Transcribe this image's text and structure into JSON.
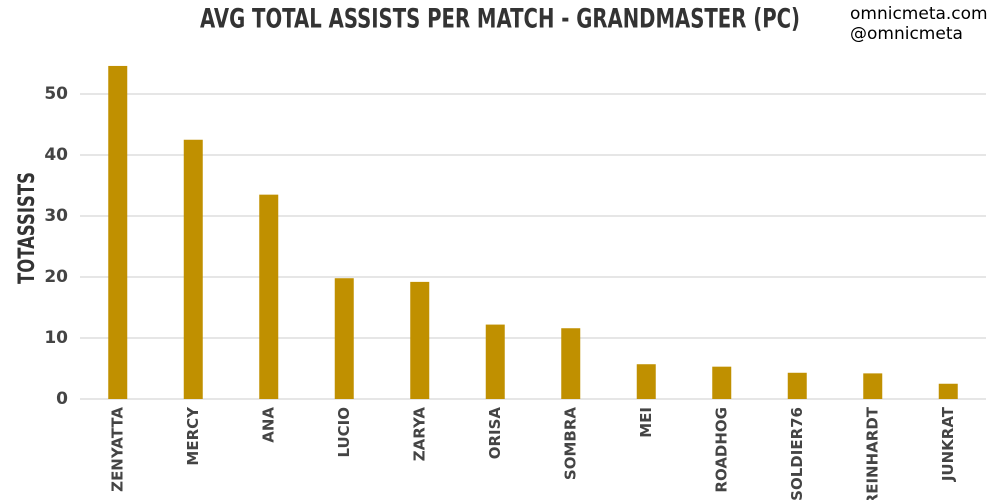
{
  "chart_data": {
    "type": "bar",
    "title": "AVG TOTAL ASSISTS PER MATCH - GRANDMASTER (PC)",
    "watermark": [
      "omnicmeta.com",
      "@omnicmeta"
    ],
    "y_label": "TOTASSISTS",
    "categories": [
      "ZENYATTA",
      "MERCY",
      "ANA",
      "LUCIO",
      "ZARYA",
      "ORISA",
      "SOMBRA",
      "MEI",
      "ROADHOG",
      "SOLDIER76",
      "REINHARDT",
      "JUNKRAT"
    ],
    "values": [
      54.6,
      42.5,
      33.5,
      19.8,
      19.2,
      12.2,
      11.6,
      5.7,
      5.3,
      4.3,
      4.2,
      2.5
    ],
    "color": "#c09000",
    "ylim": [
      0,
      56
    ],
    "yticks": [
      0,
      10,
      20,
      30,
      40,
      50
    ],
    "grid": true
  }
}
